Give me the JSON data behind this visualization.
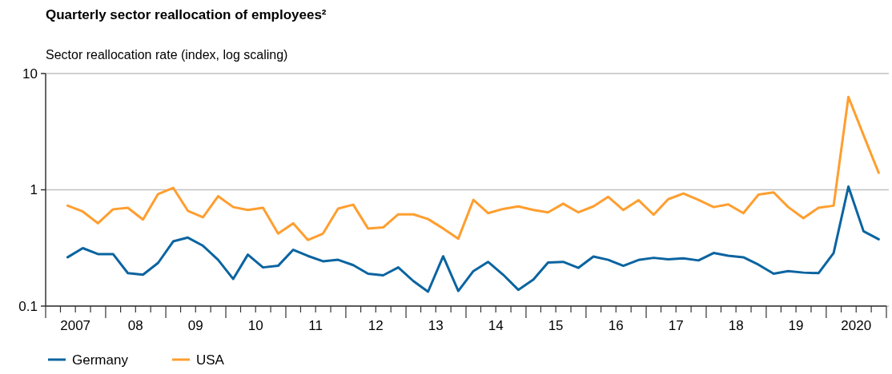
{
  "chart_data": {
    "type": "line",
    "title": "Quarterly sector reallocation of employees²",
    "ylabel": "Sector reallocation rate (index, log scaling)",
    "x": [
      "2007-05-15",
      "2007-08-15",
      "2007-11-15",
      "2008-02-15",
      "2008-05-15",
      "2008-08-15",
      "2008-11-15",
      "2009-02-15",
      "2009-05-15",
      "2009-08-15",
      "2009-11-15",
      "2010-02-15",
      "2010-05-15",
      "2010-08-15",
      "2010-11-15",
      "2011-02-15",
      "2011-05-15",
      "2011-08-15",
      "2011-11-15",
      "2012-02-15",
      "2012-05-15",
      "2012-08-15",
      "2012-11-15",
      "2013-02-15",
      "2013-05-15",
      "2013-08-15",
      "2013-11-15",
      "2014-02-15",
      "2014-05-15",
      "2014-08-15",
      "2014-11-15",
      "2015-02-15",
      "2015-05-15",
      "2015-08-15",
      "2015-11-15",
      "2016-02-15",
      "2016-05-15",
      "2016-08-15",
      "2016-11-15",
      "2017-02-15",
      "2017-05-15",
      "2017-08-15",
      "2017-11-15",
      "2018-02-15",
      "2018-05-15",
      "2018-08-15",
      "2018-11-15",
      "2019-02-15",
      "2019-05-15",
      "2019-08-15",
      "2019-11-15",
      "2020-02-15",
      "2020-05-15",
      "2020-08-15",
      "2020-11-15"
    ],
    "series": [
      {
        "name": "Germany",
        "color": "#0a64a0",
        "values": [
          0.263,
          0.315,
          0.28,
          0.28,
          0.192,
          0.186,
          0.235,
          0.36,
          0.388,
          0.33,
          0.25,
          0.171,
          0.277,
          0.215,
          0.222,
          0.305,
          0.27,
          0.243,
          0.25,
          0.225,
          0.19,
          0.184,
          0.215,
          0.164,
          0.133,
          0.268,
          0.135,
          0.2,
          0.24,
          0.186,
          0.138,
          0.169,
          0.237,
          0.24,
          0.213,
          0.267,
          0.25,
          0.222,
          0.249,
          0.26,
          0.252,
          0.257,
          0.247,
          0.286,
          0.271,
          0.263,
          0.227,
          0.19,
          0.2,
          0.194,
          0.192,
          0.286,
          1.065,
          0.44,
          0.376
        ]
      },
      {
        "name": "USA",
        "color": "#ff9e2f",
        "values": [
          0.73,
          0.65,
          0.515,
          0.68,
          0.7,
          0.555,
          0.92,
          1.04,
          0.66,
          0.58,
          0.88,
          0.71,
          0.67,
          0.7,
          0.42,
          0.515,
          0.37,
          0.42,
          0.69,
          0.745,
          0.465,
          0.475,
          0.615,
          0.615,
          0.56,
          0.465,
          0.38,
          0.82,
          0.63,
          0.685,
          0.72,
          0.67,
          0.64,
          0.76,
          0.64,
          0.72,
          0.87,
          0.67,
          0.815,
          0.61,
          0.83,
          0.93,
          0.82,
          0.71,
          0.75,
          0.63,
          0.91,
          0.95,
          0.71,
          0.57,
          0.7,
          0.73,
          6.3,
          2.95,
          1.4
        ]
      }
    ],
    "log": "y",
    "ylim": [
      0.1,
      10
    ],
    "yticks": [
      0.1,
      1,
      10
    ],
    "grid": "y",
    "legend": "bottom left",
    "line_style": "solid",
    "marker": "none",
    "xlim": [
      "2007-01-01",
      "2021-01-01"
    ],
    "xticks": [
      {
        "value": "2007-01-01",
        "label": null
      },
      {
        "value": "2007-04-01",
        "label": null
      },
      {
        "value": "2007-07-01",
        "label": "2007"
      },
      {
        "value": "2007-10-01",
        "label": null
      },
      {
        "value": "2008-01-01",
        "label": null
      },
      {
        "value": "2008-04-01",
        "label": null
      },
      {
        "value": "2008-07-01",
        "label": "08"
      },
      {
        "value": "2008-10-01",
        "label": null
      },
      {
        "value": "2009-01-01",
        "label": null
      },
      {
        "value": "2009-04-01",
        "label": null
      },
      {
        "value": "2009-07-01",
        "label": "09"
      },
      {
        "value": "2009-10-01",
        "label": null
      },
      {
        "value": "2010-01-01",
        "label": null
      },
      {
        "value": "2010-04-01",
        "label": null
      },
      {
        "value": "2010-07-01",
        "label": "10"
      },
      {
        "value": "2010-10-01",
        "label": null
      },
      {
        "value": "2011-01-01",
        "label": null
      },
      {
        "value": "2011-04-01",
        "label": null
      },
      {
        "value": "2011-07-01",
        "label": "11"
      },
      {
        "value": "2011-10-01",
        "label": null
      },
      {
        "value": "2012-01-01",
        "label": null
      },
      {
        "value": "2012-04-01",
        "label": null
      },
      {
        "value": "2012-07-01",
        "label": "12"
      },
      {
        "value": "2012-10-01",
        "label": null
      },
      {
        "value": "2013-01-01",
        "label": null
      },
      {
        "value": "2013-04-01",
        "label": null
      },
      {
        "value": "2013-07-01",
        "label": "13"
      },
      {
        "value": "2013-10-01",
        "label": null
      },
      {
        "value": "2014-01-01",
        "label": null
      },
      {
        "value": "2014-04-01",
        "label": null
      },
      {
        "value": "2014-07-01",
        "label": "14"
      },
      {
        "value": "2014-10-01",
        "label": null
      },
      {
        "value": "2015-01-01",
        "label": null
      },
      {
        "value": "2015-04-01",
        "label": null
      },
      {
        "value": "2015-07-01",
        "label": "15"
      },
      {
        "value": "2015-10-01",
        "label": null
      },
      {
        "value": "2016-01-01",
        "label": null
      },
      {
        "value": "2016-04-01",
        "label": null
      },
      {
        "value": "2016-07-01",
        "label": "16"
      },
      {
        "value": "2016-10-01",
        "label": null
      },
      {
        "value": "2017-01-01",
        "label": null
      },
      {
        "value": "2017-04-01",
        "label": null
      },
      {
        "value": "2017-07-01",
        "label": "17"
      },
      {
        "value": "2017-10-01",
        "label": null
      },
      {
        "value": "2018-01-01",
        "label": null
      },
      {
        "value": "2018-04-01",
        "label": null
      },
      {
        "value": "2018-07-01",
        "label": "18"
      },
      {
        "value": "2018-10-01",
        "label": null
      },
      {
        "value": "2019-01-01",
        "label": null
      },
      {
        "value": "2019-04-01",
        "label": null
      },
      {
        "value": "2019-07-01",
        "label": "19"
      },
      {
        "value": "2019-10-01",
        "label": null
      },
      {
        "value": "2020-01-01",
        "label": null
      },
      {
        "value": "2020-04-01",
        "label": null
      },
      {
        "value": "2020-07-01",
        "label": "2020"
      },
      {
        "value": "2020-10-01",
        "label": null
      },
      {
        "value": "2021-01-01",
        "label": null
      }
    ]
  }
}
